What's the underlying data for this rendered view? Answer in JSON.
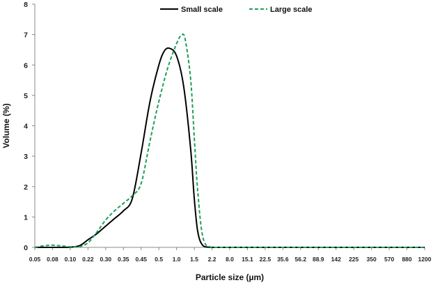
{
  "chart_data": {
    "type": "line",
    "xlabel": "Particle size (µm)",
    "ylabel": "Volume (%)",
    "ylim": [
      0,
      8
    ],
    "yticks": [
      "0",
      "1",
      "2",
      "3",
      "4",
      "5",
      "6",
      "7",
      "8"
    ],
    "categories": [
      "0.05",
      "0.08",
      "0.10",
      "0.22",
      "0.30",
      "0.35",
      "0.45",
      "0.5",
      "1.0",
      "1.5",
      "2.2",
      "8.0",
      "15.1",
      "22.5",
      "35.6",
      "56.2",
      "88.9",
      "142",
      "225",
      "350",
      "570",
      "880",
      "1200"
    ],
    "grid": false,
    "legend_position": "top",
    "series": [
      {
        "name": "Small scale",
        "color": "#000000",
        "style": "solid",
        "x": [
          0,
          1,
          1.8,
          2.5,
          3,
          3.5,
          4,
          4.4,
          5,
          5.5,
          6,
          6.5,
          7,
          7.3,
          7.6,
          8,
          8.4,
          8.8,
          9,
          9.2,
          9.5,
          10,
          11,
          13,
          16,
          22
        ],
        "values": [
          0,
          0,
          0,
          0.05,
          0.25,
          0.45,
          0.7,
          0.9,
          1.2,
          1.6,
          3.1,
          4.8,
          6.0,
          6.45,
          6.55,
          6.3,
          5.3,
          3.2,
          1.6,
          0.5,
          0.05,
          0,
          0,
          0,
          0,
          0
        ]
      },
      {
        "name": "Large scale",
        "color": "#1e9e5a",
        "style": "dashed",
        "x": [
          0,
          0.5,
          1,
          1.5,
          2,
          2.5,
          3,
          3.5,
          4,
          4.5,
          5,
          5.5,
          6,
          6.5,
          7,
          7.5,
          8,
          8.3,
          8.5,
          8.8,
          9,
          9.2,
          9.5,
          10,
          11,
          13,
          16,
          22
        ],
        "values": [
          0,
          0.05,
          0.07,
          0.05,
          0.02,
          0.02,
          0.15,
          0.5,
          0.9,
          1.2,
          1.45,
          1.7,
          2.1,
          3.5,
          4.8,
          5.9,
          6.7,
          7.0,
          6.8,
          5.5,
          3.6,
          1.8,
          0.3,
          0,
          0,
          0,
          0,
          0
        ]
      }
    ]
  }
}
